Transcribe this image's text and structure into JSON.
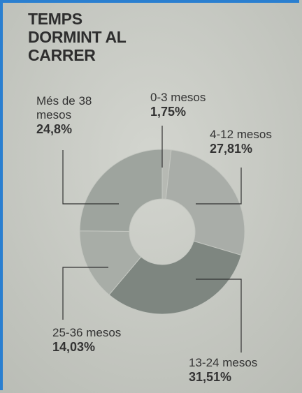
{
  "chart_data": {
    "type": "donut",
    "title": "TEMPS DORMINT AL CARRER",
    "categories": [
      "0-3 mesos",
      "4-12 mesos",
      "13-24 mesos",
      "25-36 mesos",
      "Més de 38 mesos"
    ],
    "values": [
      1.75,
      27.81,
      31.51,
      14.03,
      24.8
    ],
    "value_labels": [
      "1,75%",
      "27,81%",
      "31,51%",
      "14,03%",
      "24,8%"
    ],
    "colors": [
      "#b6b9b3",
      "#a9ada8",
      "#7e8680",
      "#a8ada7",
      "#9ea49e"
    ]
  }
}
